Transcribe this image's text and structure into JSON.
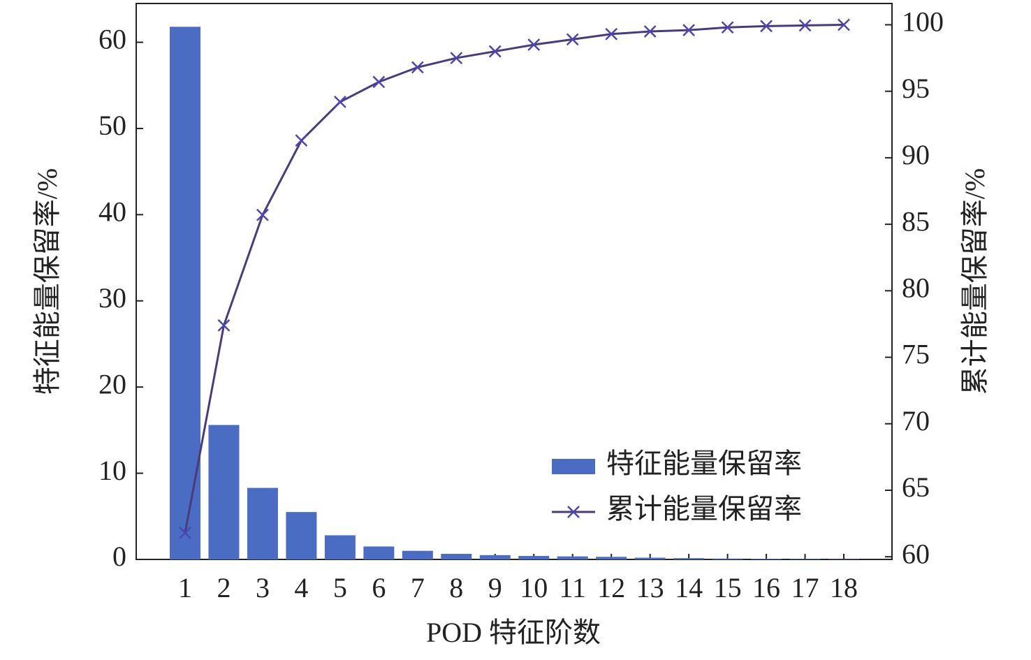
{
  "chart_data": {
    "type": "bar",
    "xlabel": "POD 特征阶数",
    "ylabel": "特征能量保留率/%",
    "y2label": "累计能量保留率/%",
    "categories": [
      "1",
      "2",
      "3",
      "4",
      "5",
      "6",
      "7",
      "8",
      "9",
      "10",
      "11",
      "12",
      "13",
      "14",
      "15",
      "16",
      "17",
      "18"
    ],
    "series": [
      {
        "name": "特征能量保留率",
        "type": "bar",
        "color": "#4a6cc2",
        "values": [
          61.8,
          15.6,
          8.3,
          5.5,
          2.8,
          1.5,
          1.0,
          0.65,
          0.5,
          0.4,
          0.35,
          0.3,
          0.2,
          0.15,
          0.1,
          0.08,
          0.06,
          0.05
        ]
      },
      {
        "name": "累计能量保留率",
        "type": "line",
        "axis": "y2",
        "color": "#4a3b7a",
        "marker_color": "#4b46b0",
        "values": [
          61.8,
          77.4,
          85.7,
          91.3,
          94.2,
          95.7,
          96.8,
          97.5,
          98.0,
          98.5,
          98.9,
          99.3,
          99.5,
          99.6,
          99.8,
          99.9,
          99.95,
          100
        ]
      }
    ],
    "ylim": [
      0,
      64.5
    ],
    "yticks": [
      0,
      10,
      20,
      30,
      40,
      50,
      60
    ],
    "y2lim": [
      59.8,
      101.6
    ],
    "y2ticks": [
      60,
      65,
      70,
      75,
      80,
      85,
      90,
      95,
      100
    ],
    "legend": "lower right"
  }
}
